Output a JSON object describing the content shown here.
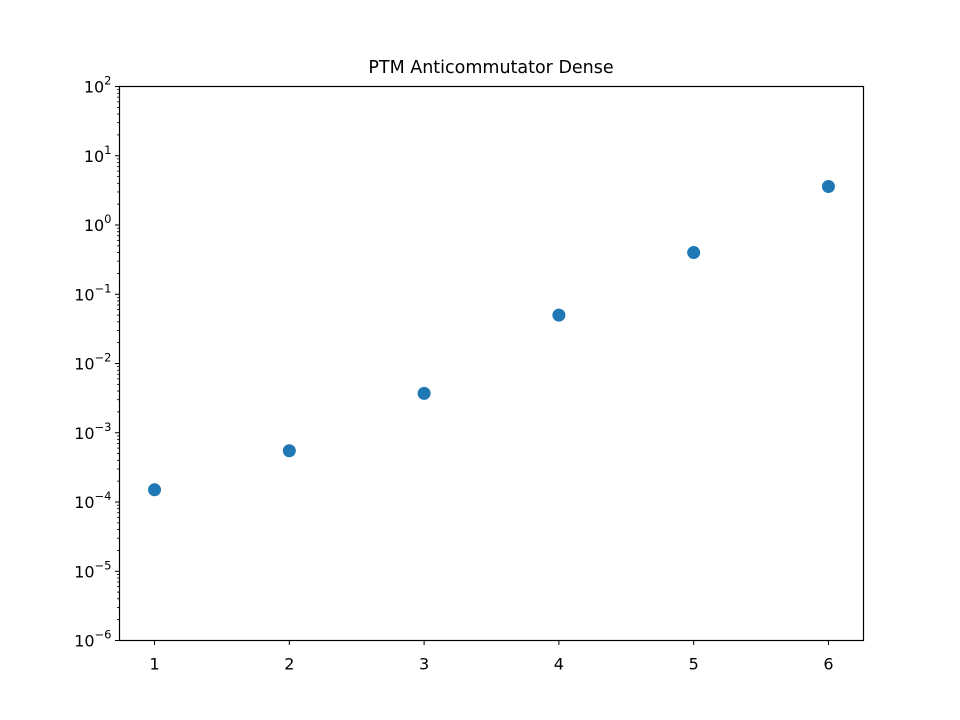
{
  "chart_data": {
    "type": "scatter",
    "title": "PTM Anticommutator Dense",
    "xlabel": "",
    "ylabel": "",
    "x": [
      1,
      2,
      3,
      4,
      5,
      6
    ],
    "series": [
      {
        "values": [
          0.00015,
          0.00055,
          0.0037,
          0.05,
          0.4,
          3.6
        ],
        "color": "#1f77b4"
      }
    ],
    "x_ticks": [
      "1",
      "2",
      "3",
      "4",
      "5",
      "6"
    ],
    "y_ticks": [
      {
        "base": "10",
        "exp": "−6",
        "value": 1e-06
      },
      {
        "base": "10",
        "exp": "−5",
        "value": 1e-05
      },
      {
        "base": "10",
        "exp": "−4",
        "value": 0.0001
      },
      {
        "base": "10",
        "exp": "−3",
        "value": 0.001
      },
      {
        "base": "10",
        "exp": "−2",
        "value": 0.01
      },
      {
        "base": "10",
        "exp": "−1",
        "value": 0.1
      },
      {
        "base": "10",
        "exp": "0",
        "value": 1
      },
      {
        "base": "10",
        "exp": "1",
        "value": 10
      },
      {
        "base": "10",
        "exp": "2",
        "value": 100
      }
    ],
    "xlim": [
      0.74,
      6.26
    ],
    "ylim": [
      1e-06,
      100
    ],
    "yscale": "log",
    "grid": false,
    "legend": false,
    "marker_color": "#1f77b4"
  }
}
